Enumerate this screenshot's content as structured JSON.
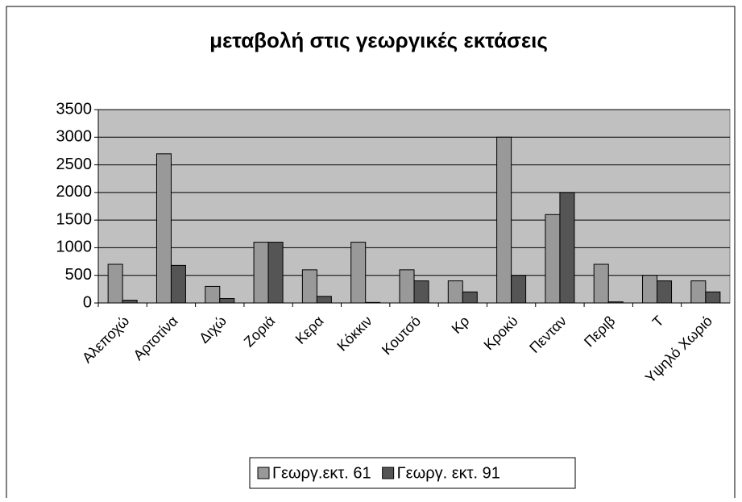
{
  "chart_data": {
    "type": "bar",
    "title": "μεταβολή στις γεωργικές εκτάσεις",
    "categories": [
      "Αλεποχώ",
      "Αρτοτίνα",
      "Διχώ",
      "Ζοριά",
      "Κερα",
      "Κόκκιν",
      "Κουτσό",
      "Κρ",
      "Κροκύ",
      "Πενταν",
      "Περιβ",
      "Τ",
      "Υψηλό Χωριό"
    ],
    "series": [
      {
        "name": "Γεωργ.εκτ. 61",
        "color": "#999999",
        "values": [
          700,
          2700,
          300,
          1100,
          600,
          1100,
          600,
          400,
          3000,
          1600,
          700,
          500,
          400
        ]
      },
      {
        "name": "Γεωργ. εκτ. 91",
        "color": "#555555",
        "values": [
          50,
          680,
          80,
          1100,
          120,
          10,
          400,
          200,
          500,
          2000,
          20,
          400,
          200
        ]
      }
    ],
    "ylim": [
      0,
      3500
    ],
    "yticks": [
      0,
      500,
      1000,
      1500,
      2000,
      2500,
      3000,
      3500
    ],
    "grid": true,
    "legend": "bottom",
    "plot_background": "#c0c0c0"
  }
}
